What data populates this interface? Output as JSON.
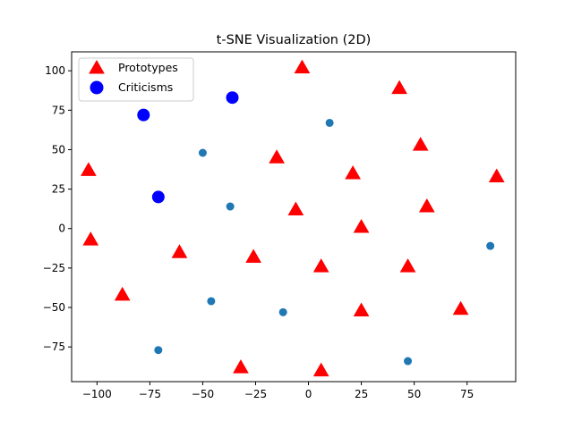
{
  "chart_data": {
    "type": "scatter",
    "title": "t-SNE Visualization (2D)",
    "xlabel": "",
    "ylabel": "",
    "xlim": [
      -112,
      98
    ],
    "ylim": [
      -97,
      112
    ],
    "x_ticks": [
      -100,
      -75,
      -50,
      -25,
      0,
      25,
      50,
      75
    ],
    "y_ticks": [
      -75,
      -50,
      -25,
      0,
      25,
      50,
      75,
      100
    ],
    "grid": false,
    "legend_placement": "top-left",
    "series": [
      {
        "marker": "circle-small",
        "color": "#1f77b4",
        "x": [
          10,
          -50,
          -37,
          -46,
          -12,
          -71,
          47,
          86
        ],
        "y": [
          67,
          48,
          14,
          -46,
          -53,
          -77,
          -84,
          -11
        ]
      },
      {
        "name": "Prototypes",
        "marker": "triangle",
        "color": "#ff0000",
        "x": [
          -3,
          43,
          53,
          -104,
          -15,
          21,
          -6,
          56,
          89,
          -103,
          25,
          -61,
          -26,
          6,
          47,
          -88,
          25,
          72,
          -32,
          6
        ],
        "y": [
          102,
          89,
          53,
          37,
          45,
          35,
          12,
          14,
          33,
          -7,
          1,
          -15,
          -18,
          -24,
          -24,
          -42,
          -52,
          -51,
          -88,
          -90
        ]
      },
      {
        "name": "Criticisms",
        "marker": "circle-large",
        "color": "#0000ff",
        "x": [
          -78,
          -36,
          -71
        ],
        "y": [
          72,
          83,
          20
        ]
      }
    ]
  }
}
